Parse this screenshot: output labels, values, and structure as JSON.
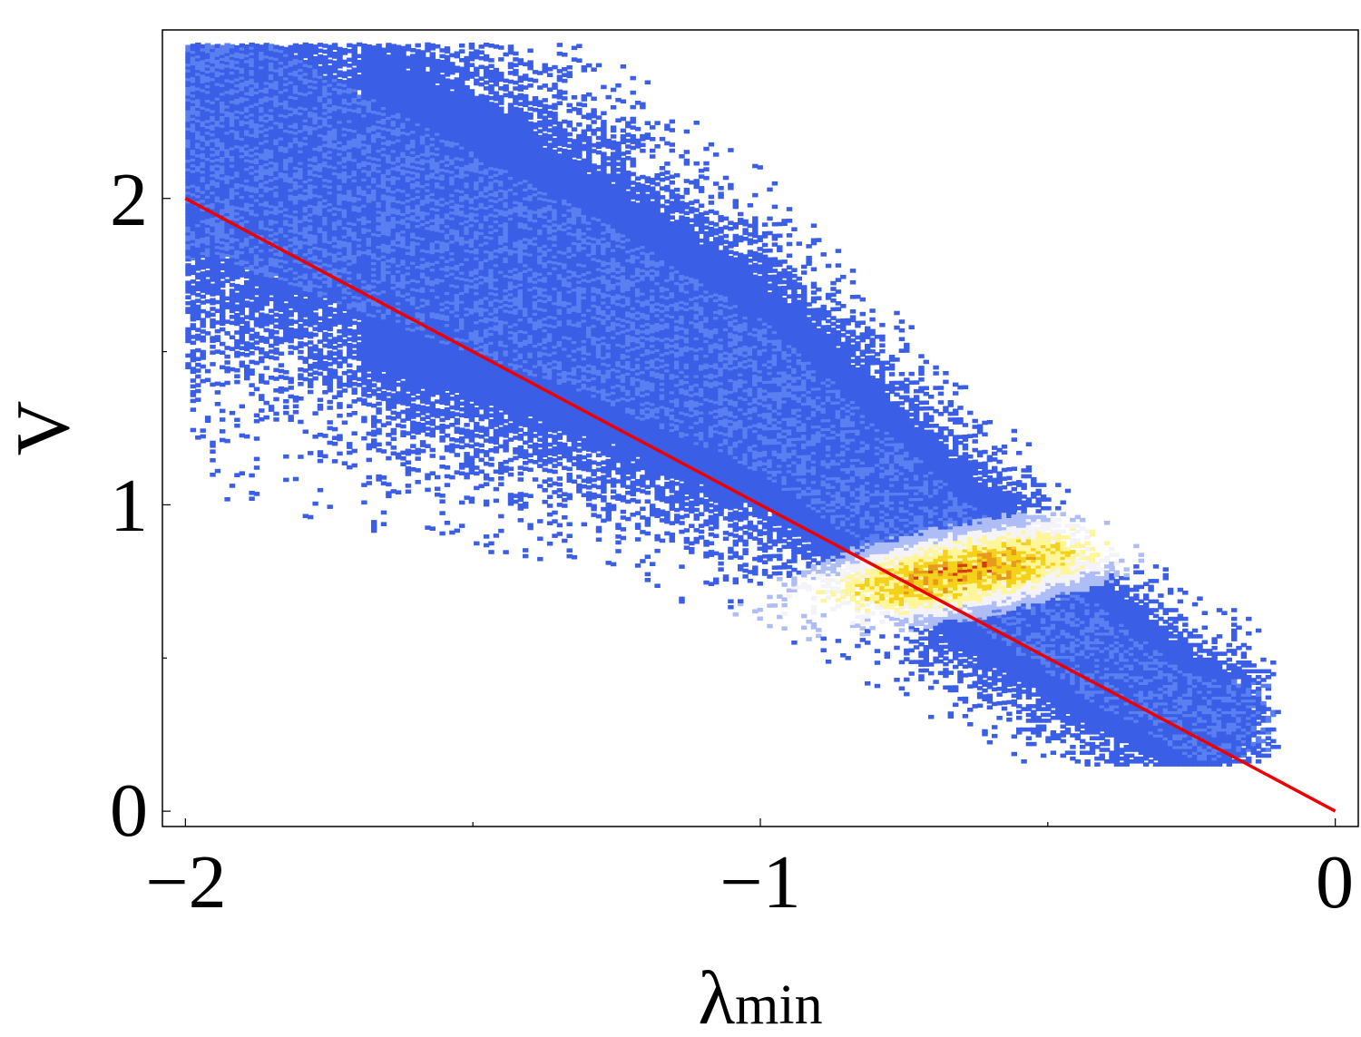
{
  "chart_data": {
    "type": "heatmap",
    "title": "",
    "xlabel": "λ",
    "xlabel_subscript": "min",
    "ylabel": "V",
    "xlim": [
      -2.04,
      0.04
    ],
    "ylim": [
      -0.05,
      2.55
    ],
    "x_ticks": [
      {
        "value": -2,
        "label": "−2"
      },
      {
        "value": -1,
        "label": "−1"
      },
      {
        "value": 0,
        "label": "0"
      }
    ],
    "x_minor_ticks": [
      -1.5,
      -0.5
    ],
    "y_ticks": [
      {
        "value": 0,
        "label": "0"
      },
      {
        "value": 1,
        "label": "1"
      },
      {
        "value": 2,
        "label": "2"
      }
    ],
    "y_minor_ticks": [
      0.5,
      1.5
    ],
    "grid": false,
    "legend": "none",
    "density": {
      "description": "2D histogram of points concentrated along a band above the line V = -λmin",
      "peak": {
        "x": -0.65,
        "y": 0.78
      },
      "band_center": [
        {
          "x": -1.95,
          "y": 2.2
        },
        {
          "x": -1.6,
          "y": 1.9
        },
        {
          "x": -1.3,
          "y": 1.65
        },
        {
          "x": -1.0,
          "y": 1.35
        },
        {
          "x": -0.8,
          "y": 1.05
        },
        {
          "x": -0.65,
          "y": 0.82
        },
        {
          "x": -0.45,
          "y": 0.55
        },
        {
          "x": -0.25,
          "y": 0.3
        }
      ],
      "colormap": [
        "#3a5ee6",
        "#5a7ff0",
        "#aebdf5",
        "#f3f3f8",
        "#fff59a",
        "#f5d21a",
        "#e89a1a",
        "#d23a18"
      ]
    },
    "series": [
      {
        "type": "line",
        "color": "#ee0000",
        "x": [
          -2,
          0
        ],
        "y": [
          2,
          0
        ]
      }
    ]
  }
}
